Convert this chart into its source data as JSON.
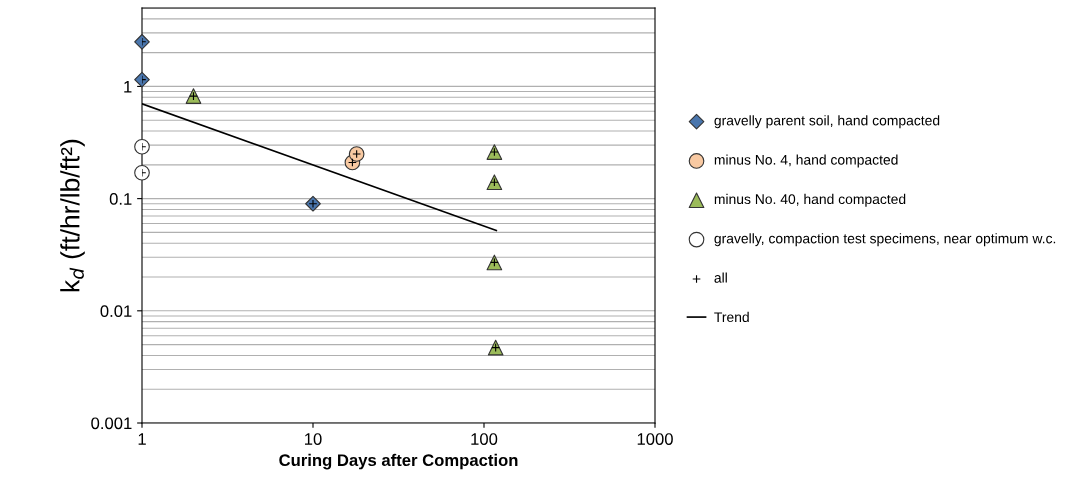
{
  "chart_data": {
    "type": "scatter",
    "xlabel": "Curing Days after Compaction",
    "ylabel": "k$_{d}$ (ft/hr/lb/ft²)",
    "log": "xy",
    "xlim": [
      1,
      1000
    ],
    "ylim": [
      0.001,
      5
    ],
    "xticks": [
      1,
      10,
      100,
      1000
    ],
    "yticks": [
      0.001,
      0.01,
      0.1,
      1
    ],
    "grid": "y",
    "legend": "right",
    "series": [
      {
        "name": "gravelly parent soil, hand compacted",
        "type": "scatter",
        "marker": "diamond",
        "color": "#4a76ad",
        "x": [
          1,
          1,
          10
        ],
        "values": [
          2.5,
          1.15,
          0.09
        ]
      },
      {
        "name": "minus No. 4, hand compacted",
        "type": "scatter",
        "marker": "circle",
        "color": "#f8c9a2",
        "x": [
          17,
          18
        ],
        "values": [
          0.21,
          0.25
        ]
      },
      {
        "name": "minus No. 40, hand compacted",
        "type": "scatter",
        "marker": "triangle",
        "color": "#9bbb59",
        "x": [
          2,
          115,
          115,
          115,
          117
        ],
        "values": [
          0.82,
          0.26,
          0.14,
          0.027,
          0.0047
        ]
      },
      {
        "name": "gravelly, compaction test specimens, near optimum w.c.",
        "type": "scatter",
        "marker": "circle",
        "color": "#ffffff",
        "x": [
          1,
          1
        ],
        "values": [
          0.29,
          0.17
        ]
      },
      {
        "name": "all",
        "type": "scatter",
        "marker": "cross",
        "color": "#000000",
        "x": [
          1,
          1,
          10,
          17,
          18,
          2,
          115,
          115,
          115,
          117,
          1,
          1
        ],
        "values": [
          2.5,
          1.15,
          0.09,
          0.21,
          0.25,
          0.82,
          0.26,
          0.14,
          0.027,
          0.0047,
          0.29,
          0.17
        ]
      },
      {
        "name": "Trend",
        "type": "line",
        "marker": "none",
        "line_style": "solid",
        "color": "#000000",
        "x": [
          1,
          118
        ],
        "values": [
          0.7,
          0.052
        ]
      }
    ]
  }
}
